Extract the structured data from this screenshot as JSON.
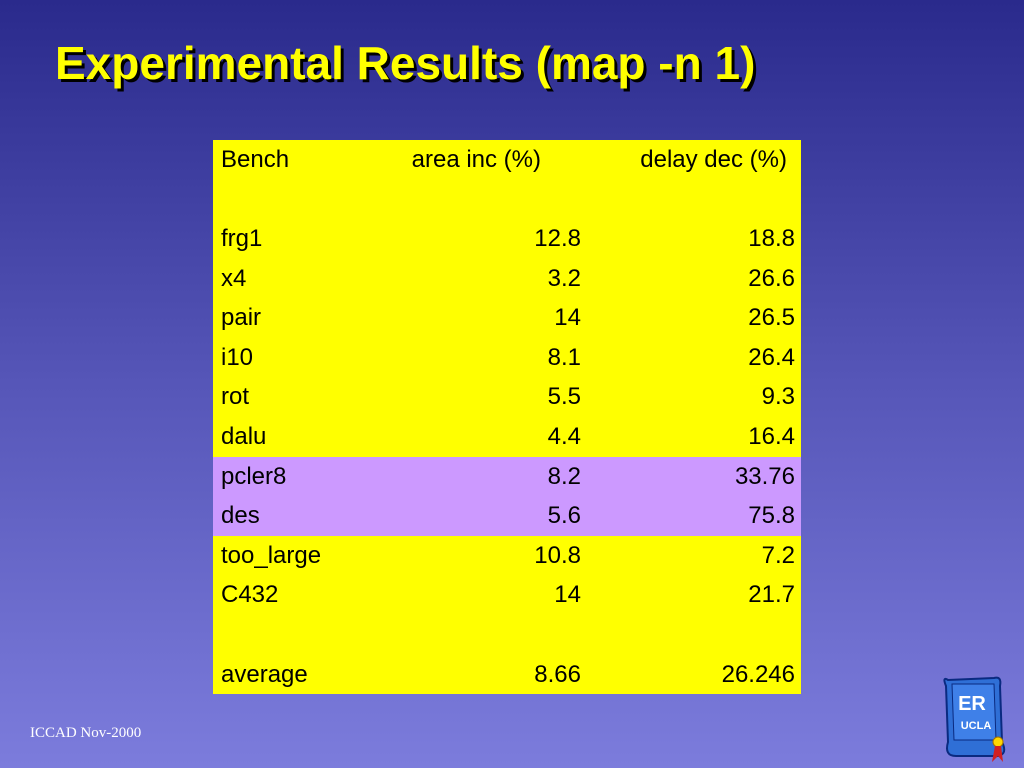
{
  "title": "Experimental Results (map -n 1)",
  "table": {
    "header": [
      "Bench",
      "area inc (%)",
      "delay dec (%)"
    ],
    "rows": [
      [
        "frg1",
        "12.8",
        "18.8"
      ],
      [
        "x4",
        "3.2",
        "26.6"
      ],
      [
        "pair",
        "14",
        "26.5"
      ],
      [
        "i10",
        "8.1",
        "26.4"
      ],
      [
        "rot",
        "5.5",
        "9.3"
      ],
      [
        "dalu",
        "4.4",
        "16.4"
      ],
      [
        "pcler8",
        "8.2",
        "33.76"
      ],
      [
        "des",
        "5.6",
        "75.8"
      ],
      [
        "too_large",
        "10.8",
        "7.2"
      ],
      [
        "C432",
        "14",
        "21.7"
      ]
    ],
    "average": [
      "average",
      "8.66",
      "26.246"
    ],
    "highlight_rows": [
      6,
      7
    ],
    "color": "#ffff00",
    "highlight_color": "#cc99ff"
  },
  "footer": "ICCAD Nov-2000",
  "logo": {
    "title": "ER",
    "subtitle": "UCLA"
  }
}
